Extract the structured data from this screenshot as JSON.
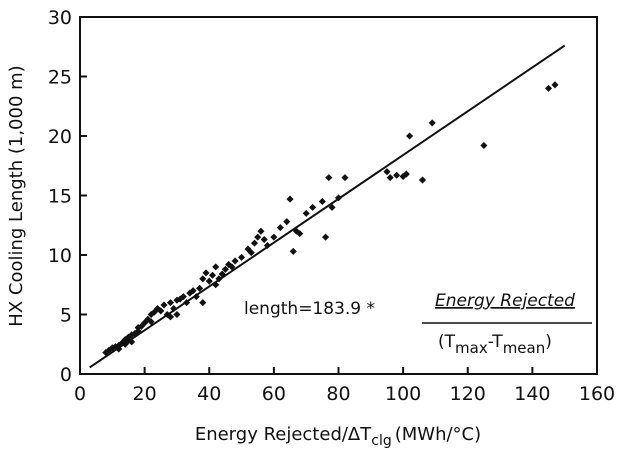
{
  "chart_data": {
    "type": "scatter",
    "x_label": {
      "main": "Energy Rejected/ΔT",
      "sub": "clg",
      "end": "(MWh/°C)"
    },
    "y_label": "HX Cooling Length (1,000 m)",
    "annotation": {
      "lhs": "length=183.9 *",
      "numerator": "Energy Rejected",
      "denominator": [
        "(T",
        "max",
        "-T",
        "mean",
        ")"
      ]
    },
    "xlim": [
      0,
      160
    ],
    "xticks": [
      0,
      20,
      40,
      60,
      80,
      100,
      120,
      140,
      160
    ],
    "ylim": [
      0,
      30
    ],
    "yticks": [
      0,
      5,
      10,
      15,
      20,
      25,
      30
    ],
    "series": [
      {
        "type": "scatter",
        "color": "#111111",
        "x": [
          8,
          9,
          10,
          11,
          12,
          12,
          13,
          14,
          14,
          15,
          15,
          16,
          16,
          17,
          18,
          18,
          19,
          20,
          21,
          22,
          22,
          23,
          24,
          25,
          26,
          27,
          28,
          28,
          29,
          30,
          30,
          31,
          32,
          33,
          34,
          35,
          36,
          37,
          38,
          38,
          39,
          40,
          41,
          42,
          42,
          43,
          44,
          45,
          46,
          47,
          48,
          50,
          52,
          53,
          54,
          55,
          56,
          57,
          58,
          60,
          62,
          64,
          65,
          66,
          67,
          68,
          70,
          72,
          75,
          76,
          77,
          78,
          80,
          82,
          95,
          96,
          98,
          100,
          101,
          102,
          106,
          109,
          125,
          145,
          147
        ],
        "values": [
          1.8,
          2.0,
          2.2,
          2.3,
          2.4,
          2.1,
          2.6,
          2.5,
          2.9,
          2.8,
          3.1,
          2.7,
          3.3,
          3.4,
          3.6,
          3.9,
          4.0,
          4.3,
          4.6,
          5.0,
          4.4,
          5.2,
          5.5,
          5.3,
          5.8,
          5.0,
          4.8,
          6.0,
          5.5,
          6.2,
          5.0,
          6.3,
          6.5,
          6.0,
          6.8,
          7.0,
          6.5,
          7.2,
          8.0,
          6.0,
          8.5,
          7.8,
          8.3,
          7.5,
          9.0,
          8.0,
          8.4,
          8.8,
          9.2,
          9.0,
          9.5,
          9.8,
          10.5,
          10.2,
          11.0,
          11.5,
          12.0,
          11.3,
          10.8,
          11.5,
          12.3,
          12.8,
          14.7,
          10.3,
          12.0,
          11.8,
          13.5,
          14.0,
          14.5,
          11.5,
          16.5,
          14.0,
          14.8,
          16.5,
          17.0,
          16.5,
          16.7,
          16.6,
          16.8,
          20.0,
          16.3,
          21.1,
          19.2,
          24.0,
          24.3
        ]
      },
      {
        "type": "line",
        "color": "#111111",
        "x": [
          3,
          150
        ],
        "values": [
          0.55,
          27.6
        ]
      }
    ]
  }
}
